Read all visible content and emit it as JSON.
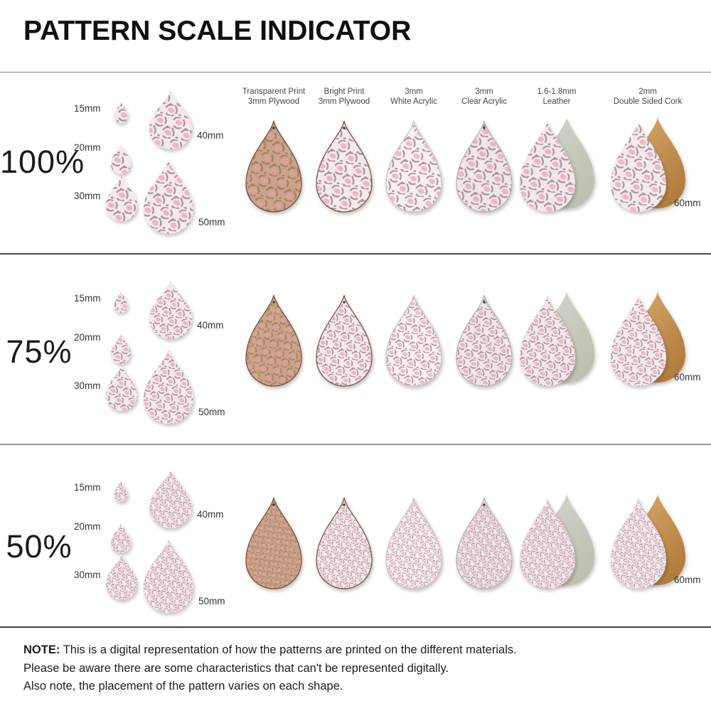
{
  "title": "PATTERN SCALE INDICATOR",
  "rows": [
    {
      "label": "100%",
      "pattern_scale": 1
    },
    {
      "label": "75%",
      "pattern_scale": 0.75
    },
    {
      "label": "50%",
      "pattern_scale": 0.5
    }
  ],
  "size_demo": {
    "sizes": [
      {
        "label": "15mm"
      },
      {
        "label": "20mm"
      },
      {
        "label": "30mm"
      },
      {
        "label": "40mm"
      },
      {
        "label": "50mm"
      }
    ],
    "right_size_label": "60mm"
  },
  "demo_pattern": {
    "bg": "#f5e8ef",
    "spot": "#f2b3c6",
    "outline": "#a3968c"
  },
  "materials": [
    {
      "id": "plywood-transparent",
      "label_line1": "Transparent Print",
      "label_line2": "3mm Plywood",
      "pattern": {
        "bg": "#cca28b",
        "spot": "#dda09b",
        "outline": "#9d8459"
      },
      "edge": "#6d4b34",
      "hole": true
    },
    {
      "id": "plywood-bright",
      "label_line1": "Bright Print",
      "label_line2": "3mm Plywood",
      "pattern": {
        "bg": "#f5e8ef",
        "spot": "#f2b3c6",
        "outline": "#a3968c"
      },
      "edge": "#74503a",
      "hole": true
    },
    {
      "id": "acrylic-white",
      "label_line1": "3mm",
      "label_line2": "White Acrylic",
      "pattern": {
        "bg": "#f8eef4",
        "spot": "#f3b9c9",
        "outline": "#a89b92"
      },
      "edge": "#cabfc4",
      "hole": false
    },
    {
      "id": "acrylic-clear",
      "label_line1": "3mm",
      "label_line2": "Clear Acrylic",
      "pattern": {
        "bg": "#f1e4ea",
        "spot": "#eeb2c3",
        "outline": "#a2978e"
      },
      "edge": "#b8adb2",
      "hole": true
    },
    {
      "id": "leather",
      "label_line1": "1.6-1.8mm",
      "label_line2": "Leather",
      "pattern": {
        "bg": "#f4e6ed",
        "spot": "#f0b4c5",
        "outline": "#a5988f"
      },
      "edge": null,
      "hole": false,
      "back": {
        "color1": "#d3d6c9",
        "color2": "#bcc0b0"
      }
    },
    {
      "id": "cork",
      "label_line1": "2mm",
      "label_line2": "Double Sided Cork",
      "pattern": {
        "bg": "#f5e9f0",
        "spot": "#f1b6c7",
        "outline": "#a79a91"
      },
      "edge": null,
      "hole": false,
      "back": {
        "color1": "#d8ab6e",
        "color2": "#b07b3b"
      }
    }
  ],
  "note": {
    "label": "NOTE:",
    "lines": [
      "This is a digital representation of how the patterns are printed on the different materials.",
      "Please be aware there are some characteristics that can't be represented digitally.",
      "Also note, the placement of the pattern varies on each shape."
    ]
  },
  "colors": {
    "background": "#ffffff",
    "divider": "#5c5c5c",
    "hole": "#42382f"
  }
}
